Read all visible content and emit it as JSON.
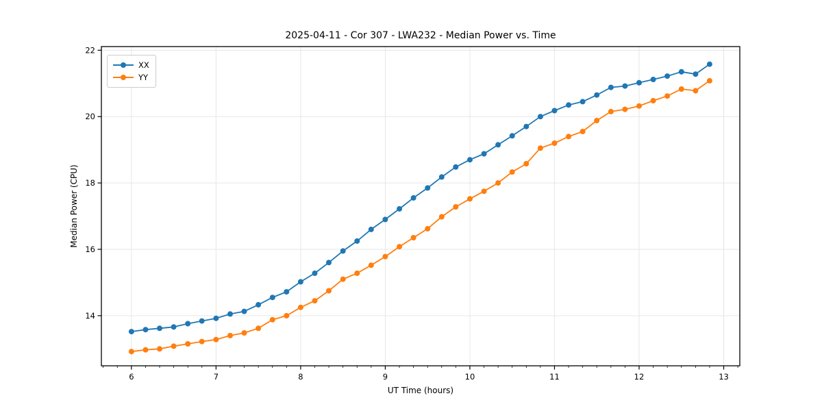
{
  "chart_data": {
    "type": "line",
    "title": "2025-04-11 - Cor 307 - LWA232 - Median Power vs. Time",
    "xlabel": "UT Time (hours)",
    "ylabel": "Median Power (CPU)",
    "xlim": [
      5.645,
      13.19
    ],
    "ylim": [
      12.49,
      22.11
    ],
    "x_major_ticks": [
      6,
      7,
      8,
      9,
      10,
      11,
      12,
      13
    ],
    "y_major_ticks": [
      14,
      16,
      18,
      20,
      22
    ],
    "x_minor_tick_step": 0.166667,
    "grid": true,
    "grid_color": "#e6e6e6",
    "spine_color": "#000000",
    "legend_position": "upper-left",
    "x": [
      6.0,
      6.167,
      6.333,
      6.5,
      6.667,
      6.833,
      7.0,
      7.167,
      7.333,
      7.5,
      7.667,
      7.833,
      8.0,
      8.167,
      8.333,
      8.5,
      8.667,
      8.833,
      9.0,
      9.167,
      9.333,
      9.5,
      9.667,
      9.833,
      10.0,
      10.167,
      10.333,
      10.5,
      10.667,
      10.833,
      11.0,
      11.167,
      11.333,
      11.5,
      11.667,
      11.833,
      12.0,
      12.167,
      12.333,
      12.5,
      12.667,
      12.833
    ],
    "series": [
      {
        "name": "XX",
        "color": "#1f77b4",
        "values": [
          13.52,
          13.58,
          13.62,
          13.66,
          13.76,
          13.84,
          13.92,
          14.05,
          14.13,
          14.33,
          14.55,
          14.72,
          15.02,
          15.28,
          15.6,
          15.95,
          16.25,
          16.6,
          16.9,
          17.22,
          17.55,
          17.85,
          18.18,
          18.48,
          18.7,
          18.88,
          19.15,
          19.42,
          19.7,
          20.0,
          20.18,
          20.35,
          20.45,
          20.65,
          20.88,
          20.92,
          21.02,
          21.12,
          21.22,
          21.35,
          21.28,
          21.58
        ]
      },
      {
        "name": "YY",
        "color": "#ff7f0e",
        "values": [
          12.92,
          12.97,
          13.0,
          13.08,
          13.15,
          13.22,
          13.28,
          13.4,
          13.48,
          13.62,
          13.88,
          14.0,
          14.25,
          14.45,
          14.75,
          15.1,
          15.28,
          15.52,
          15.78,
          16.08,
          16.35,
          16.62,
          16.98,
          17.28,
          17.52,
          17.75,
          18.0,
          18.33,
          18.58,
          19.05,
          19.2,
          19.4,
          19.55,
          19.88,
          20.15,
          20.22,
          20.32,
          20.48,
          20.62,
          20.83,
          20.78,
          21.08
        ]
      }
    ]
  }
}
